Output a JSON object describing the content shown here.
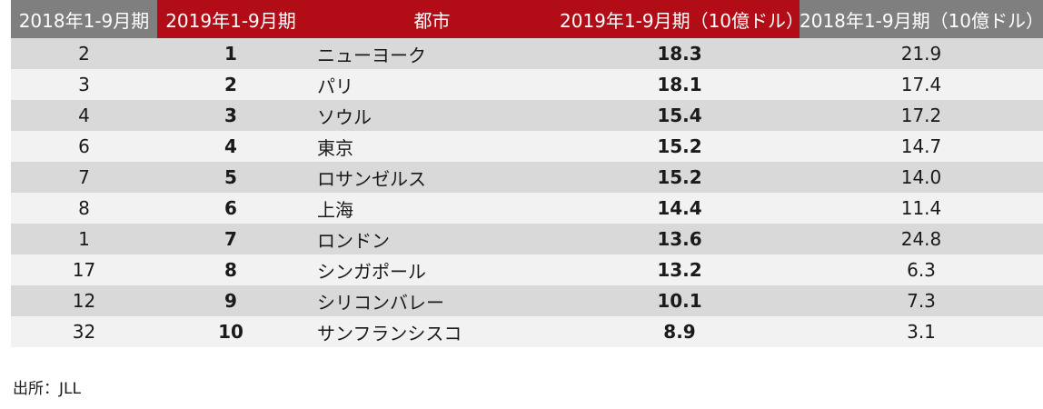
{
  "chart_data": {
    "type": "table",
    "columns": [
      "2018年1-9月期",
      "2019年1-9月期",
      "都市",
      "2019年1-9月期（10億ドル）",
      "2018年1-9月期（10億ドル）"
    ],
    "rows": [
      {
        "rank_2018": "2",
        "rank_2019": "1",
        "city": "ニューヨーク",
        "value_2019": "18.3",
        "value_2018": "21.9"
      },
      {
        "rank_2018": "3",
        "rank_2019": "2",
        "city": "パリ",
        "value_2019": "18.1",
        "value_2018": "17.4"
      },
      {
        "rank_2018": "4",
        "rank_2019": "3",
        "city": "ソウル",
        "value_2019": "15.4",
        "value_2018": "17.2"
      },
      {
        "rank_2018": "6",
        "rank_2019": "4",
        "city": "東京",
        "value_2019": "15.2",
        "value_2018": "14.7"
      },
      {
        "rank_2018": "7",
        "rank_2019": "5",
        "city": "ロサンゼルス",
        "value_2019": "15.2",
        "value_2018": "14.0"
      },
      {
        "rank_2018": "8",
        "rank_2019": "6",
        "city": "上海",
        "value_2019": "14.4",
        "value_2018": "11.4"
      },
      {
        "rank_2018": "1",
        "rank_2019": "7",
        "city": "ロンドン",
        "value_2019": "13.6",
        "value_2018": "24.8"
      },
      {
        "rank_2018": "17",
        "rank_2019": "8",
        "city": "シンガポール",
        "value_2019": "13.2",
        "value_2018": "6.3"
      },
      {
        "rank_2018": "12",
        "rank_2019": "9",
        "city": "シリコンバレー",
        "value_2019": "10.1",
        "value_2018": "7.3"
      },
      {
        "rank_2018": "32",
        "rank_2019": "10",
        "city": "サンフランシスコ",
        "value_2019": "8.9",
        "value_2018": "3.1"
      }
    ]
  },
  "colors": {
    "header_gray": "#7f7f7f",
    "header_red": "#b20d17",
    "row_dark": "#d9d9d9",
    "row_light": "#f2f2f2"
  },
  "source_text": "出所：JLL"
}
